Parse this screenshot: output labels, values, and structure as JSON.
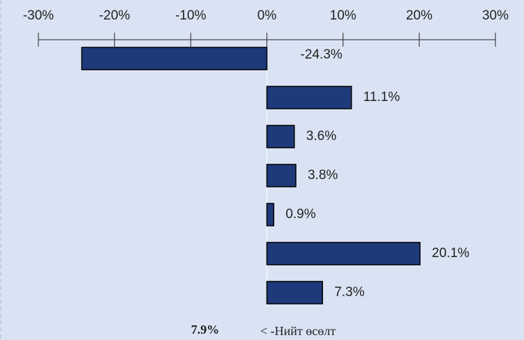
{
  "chart_data": {
    "type": "bar",
    "orientation": "horizontal",
    "categories": [
      null,
      null,
      null,
      null,
      null,
      null,
      null
    ],
    "values": [
      -24.3,
      11.1,
      3.6,
      3.8,
      0.9,
      20.1,
      7.3
    ],
    "value_labels": [
      "-24.3%",
      "11.1%",
      "3.6%",
      "3.8%",
      "0.9%",
      "20.1%",
      "7.3%"
    ],
    "color": "#1f3a7a",
    "xlim": [
      -30,
      30
    ],
    "xticks": [
      {
        "value": -30,
        "label": "-30%"
      },
      {
        "value": -20,
        "label": "-20%"
      },
      {
        "value": -10,
        "label": "-10%"
      },
      {
        "value": 0,
        "label": "0%"
      },
      {
        "value": 10,
        "label": "10%"
      },
      {
        "value": 20,
        "label": "20%"
      },
      {
        "value": 30,
        "label": "30%"
      }
    ],
    "grid": false,
    "annotations": [
      "7.9%",
      "< -Нийт өсөлт"
    ]
  }
}
